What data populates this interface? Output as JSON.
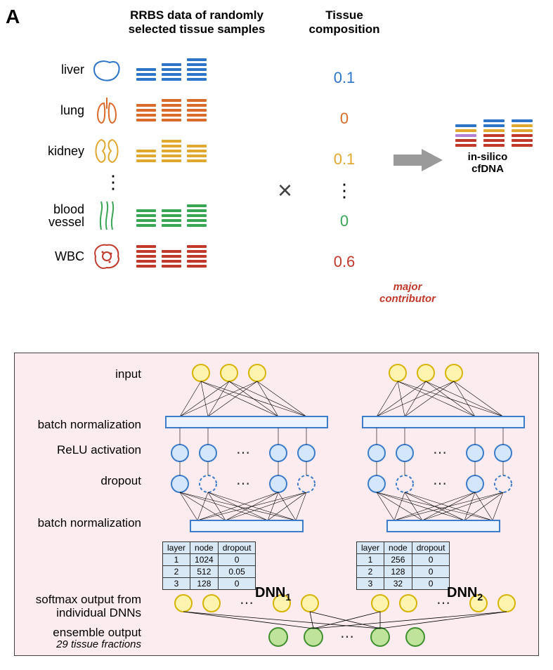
{
  "figure_label": "A",
  "headings": {
    "rrbs": "RRBS data of randomly selected tissue samples",
    "comp": "Tissue composition"
  },
  "operators": {
    "times": "×"
  },
  "result_label_1": "in-silico",
  "result_label_2": "cfDNA",
  "major_contributor_1": "major",
  "major_contributor_2": "contributor",
  "tissues": [
    {
      "name": "liver",
      "color": "#2e75c9",
      "comp": "0.1",
      "stacks": [
        3,
        4,
        5
      ]
    },
    {
      "name": "lung",
      "color": "#d96b2b",
      "comp": "0",
      "stacks": [
        4,
        5,
        5
      ]
    },
    {
      "name": "kidney",
      "color": "#e0a82e",
      "comp": "0.1",
      "stacks": [
        3,
        5,
        4
      ]
    },
    {
      "name": "blood vessel",
      "color": "#3aa655",
      "comp": "0",
      "stacks": [
        4,
        4,
        5
      ],
      "after_gap": true
    },
    {
      "name": "WBC",
      "color": "#c0392b",
      "comp": "0.6",
      "stacks": [
        5,
        4,
        5
      ],
      "comp_color": "#c0392b"
    }
  ],
  "cfdna_stacks": [
    {
      "bars": [
        "#2e75c9",
        "#e0a82e",
        "#b57fd6",
        "#c0392b",
        "#c0392b"
      ]
    },
    {
      "bars": [
        "#2e75c9",
        "#2e75c9",
        "#e0a82e",
        "#c0392b",
        "#c0392b",
        "#c0392b"
      ]
    },
    {
      "bars": [
        "#2e75c9",
        "#e0a82e",
        "#e0a82e",
        "#c0392b",
        "#c0392b",
        "#c0392b"
      ]
    }
  ],
  "nn": {
    "row_labels": {
      "input": "input",
      "bn1": "batch normalization",
      "relu": "ReLU activation",
      "dropout": "dropout",
      "bn2": "batch normalization",
      "softmax": "softmax output from individual DNNs",
      "ensemble": "ensemble output",
      "ensemble_sub": "29 tissue fractions"
    },
    "colors": {
      "input_fill": "#fff3b0",
      "input_stroke": "#d6b400",
      "hidden_fill": "#d4e6fb",
      "hidden_stroke": "#3d7cc9",
      "rect_fill": "#eaf3ff",
      "rect_stroke": "#3d7cc9",
      "output_fill": "#bfe39b",
      "output_stroke": "#3f8f2f",
      "bg": "#fdecef"
    },
    "dnn_names": {
      "dnn1": "DNN",
      "dnn1_sub": "1",
      "dnn2": "DNN",
      "dnn2_sub": "2"
    },
    "tables": {
      "headers": [
        "layer",
        "node",
        "dropout"
      ],
      "dnn1": [
        [
          "1",
          "1024",
          "0"
        ],
        [
          "2",
          "512",
          "0.05"
        ],
        [
          "3",
          "128",
          "0"
        ]
      ],
      "dnn2": [
        [
          "1",
          "256",
          "0"
        ],
        [
          "2",
          "128",
          "0"
        ],
        [
          "3",
          "32",
          "0"
        ]
      ]
    }
  }
}
